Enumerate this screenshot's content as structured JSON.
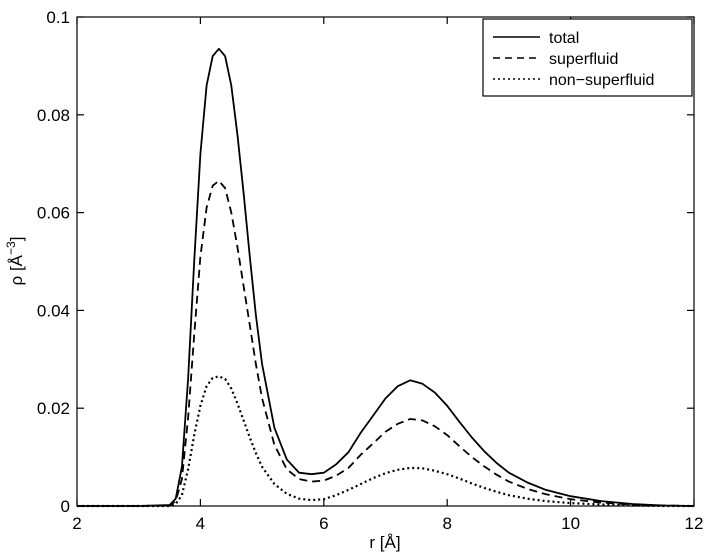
{
  "chart_data": {
    "type": "line",
    "title": "",
    "xlabel": "r [Å]",
    "ylabel": "ρ [Å",
    "ylabel_sup": "−3",
    "ylabel_close": "]",
    "xlim": [
      2,
      12
    ],
    "ylim": [
      0,
      0.1
    ],
    "xticks": [
      2,
      4,
      6,
      8,
      10,
      12
    ],
    "yticks": [
      0,
      0.02,
      0.04,
      0.06,
      0.08,
      0.1
    ],
    "xtick_labels": [
      "2",
      "4",
      "6",
      "8",
      "10",
      "12"
    ],
    "ytick_labels": [
      "0",
      "0.02",
      "0.04",
      "0.06",
      "0.08",
      "0.1"
    ],
    "grid": false,
    "legend_position": "top-right",
    "x": [
      2.0,
      3.0,
      3.5,
      3.6,
      3.7,
      3.8,
      3.9,
      4.0,
      4.1,
      4.2,
      4.3,
      4.4,
      4.5,
      4.6,
      4.7,
      4.8,
      4.9,
      5.0,
      5.2,
      5.4,
      5.6,
      5.8,
      6.0,
      6.2,
      6.4,
      6.6,
      6.8,
      7.0,
      7.2,
      7.4,
      7.6,
      7.8,
      8.0,
      8.2,
      8.4,
      8.6,
      8.8,
      9.0,
      9.3,
      9.6,
      10.0,
      10.5,
      11.0,
      11.5,
      12.0
    ],
    "series": [
      {
        "name": "total",
        "color": "#000000",
        "dash": "solid",
        "values": [
          0,
          0,
          0.0002,
          0.0015,
          0.008,
          0.026,
          0.05,
          0.072,
          0.086,
          0.092,
          0.0935,
          0.092,
          0.086,
          0.076,
          0.064,
          0.051,
          0.039,
          0.029,
          0.016,
          0.0095,
          0.0068,
          0.0065,
          0.0068,
          0.0085,
          0.011,
          0.015,
          0.0185,
          0.022,
          0.0245,
          0.0257,
          0.025,
          0.0232,
          0.0205,
          0.0172,
          0.014,
          0.0112,
          0.0088,
          0.0068,
          0.0048,
          0.0033,
          0.002,
          0.001,
          0.0004,
          0.0001,
          0
        ]
      },
      {
        "name": "superfluid",
        "color": "#000000",
        "dash": "dashed",
        "values": [
          0,
          0,
          0.0001,
          0.001,
          0.0055,
          0.018,
          0.035,
          0.051,
          0.061,
          0.0655,
          0.0665,
          0.065,
          0.06,
          0.053,
          0.045,
          0.037,
          0.029,
          0.022,
          0.0125,
          0.0075,
          0.0055,
          0.005,
          0.0052,
          0.0062,
          0.0078,
          0.0105,
          0.0128,
          0.0152,
          0.0168,
          0.0178,
          0.0175,
          0.0163,
          0.0145,
          0.0122,
          0.01,
          0.0081,
          0.0064,
          0.005,
          0.0035,
          0.0024,
          0.0014,
          0.0007,
          0.0003,
          0.0001,
          0
        ]
      },
      {
        "name": "non−superfluid",
        "color": "#000000",
        "dash": "dotted",
        "values": [
          0,
          0,
          0,
          0.0004,
          0.0022,
          0.0075,
          0.0145,
          0.0205,
          0.0245,
          0.0262,
          0.0265,
          0.026,
          0.024,
          0.021,
          0.0175,
          0.014,
          0.0108,
          0.008,
          0.0045,
          0.0025,
          0.0015,
          0.0012,
          0.0014,
          0.0022,
          0.0033,
          0.0045,
          0.0057,
          0.0067,
          0.0074,
          0.0078,
          0.0077,
          0.0072,
          0.0065,
          0.0056,
          0.0046,
          0.0037,
          0.0029,
          0.0022,
          0.0015,
          0.001,
          0.0006,
          0.0003,
          0.0001,
          0,
          0
        ]
      }
    ]
  }
}
